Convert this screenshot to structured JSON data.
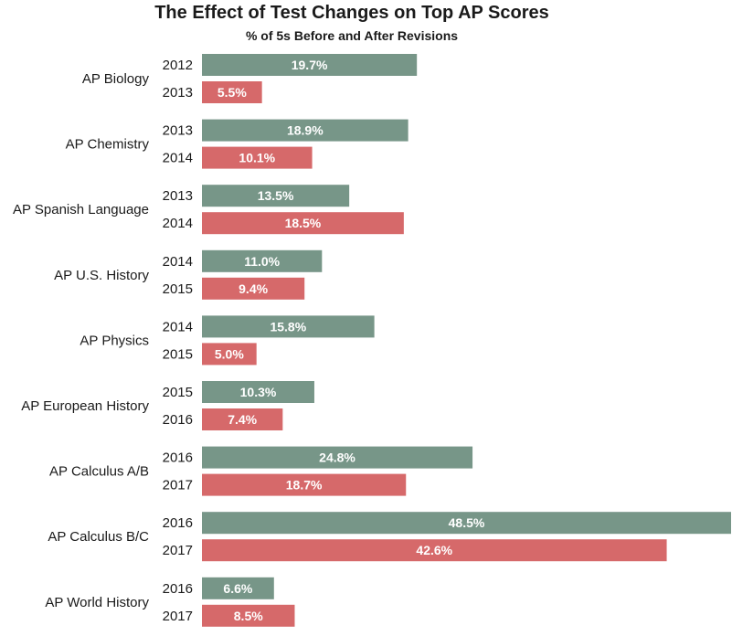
{
  "chart_data": {
    "type": "bar",
    "orientation": "horizontal",
    "title": "The Effect of Test Changes on Top AP Scores",
    "subtitle": "% of 5s Before and After Revisions",
    "colors": {
      "before": "#779688",
      "after": "#d6696a"
    },
    "xlim": [
      0,
      48.5
    ],
    "groups": [
      {
        "category": "AP Biology",
        "before": {
          "year": "2012",
          "value": 19.7,
          "label": "19.7%"
        },
        "after": {
          "year": "2013",
          "value": 5.5,
          "label": "5.5%"
        }
      },
      {
        "category": "AP Chemistry",
        "before": {
          "year": "2013",
          "value": 18.9,
          "label": "18.9%"
        },
        "after": {
          "year": "2014",
          "value": 10.1,
          "label": "10.1%"
        }
      },
      {
        "category": "AP Spanish Language",
        "before": {
          "year": "2013",
          "value": 13.5,
          "label": "13.5%"
        },
        "after": {
          "year": "2014",
          "value": 18.5,
          "label": "18.5%"
        }
      },
      {
        "category": "AP U.S. History",
        "before": {
          "year": "2014",
          "value": 11.0,
          "label": "11.0%"
        },
        "after": {
          "year": "2015",
          "value": 9.4,
          "label": "9.4%"
        }
      },
      {
        "category": "AP Physics",
        "before": {
          "year": "2014",
          "value": 15.8,
          "label": "15.8%"
        },
        "after": {
          "year": "2015",
          "value": 5.0,
          "label": "5.0%"
        }
      },
      {
        "category": "AP European History",
        "before": {
          "year": "2015",
          "value": 10.3,
          "label": "10.3%"
        },
        "after": {
          "year": "2016",
          "value": 7.4,
          "label": "7.4%"
        }
      },
      {
        "category": "AP Calculus A/B",
        "before": {
          "year": "2016",
          "value": 24.8,
          "label": "24.8%"
        },
        "after": {
          "year": "2017",
          "value": 18.7,
          "label": "18.7%"
        }
      },
      {
        "category": "AP Calculus B/C",
        "before": {
          "year": "2016",
          "value": 48.5,
          "label": "48.5%"
        },
        "after": {
          "year": "2017",
          "value": 42.6,
          "label": "42.6%"
        }
      },
      {
        "category": "AP World History",
        "before": {
          "year": "2016",
          "value": 6.6,
          "label": "6.6%"
        },
        "after": {
          "year": "2017",
          "value": 8.5,
          "label": "8.5%"
        }
      }
    ]
  }
}
